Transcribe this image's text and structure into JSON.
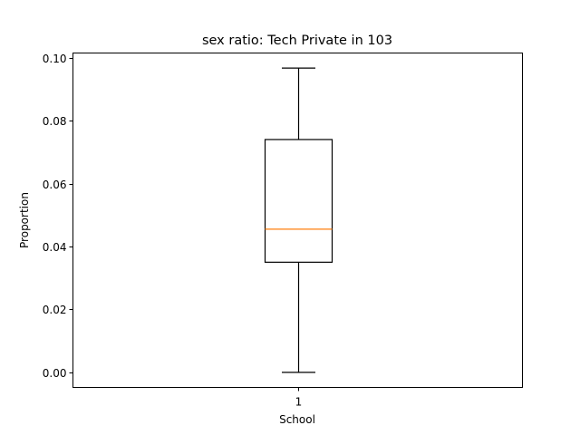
{
  "chart_data": {
    "type": "boxplot",
    "title": "sex ratio: Tech Private in 103",
    "xlabel": "School",
    "ylabel": "Proportion",
    "categories": [
      "1"
    ],
    "ylim": [
      -0.0048,
      0.1015
    ],
    "yticks": [
      0.0,
      0.02,
      0.04,
      0.06,
      0.08,
      0.1
    ],
    "ytick_labels": [
      "0.00",
      "0.02",
      "0.04",
      "0.06",
      "0.08",
      "0.10"
    ],
    "boxes": [
      {
        "category": "1",
        "whisker_low": 0.0,
        "q1": 0.035,
        "median": 0.0455,
        "q3": 0.074,
        "whisker_high": 0.0967
      }
    ],
    "grid": false,
    "colors": {
      "box": "#000000",
      "median": "#ff7f0e",
      "axes": "#000000"
    }
  }
}
